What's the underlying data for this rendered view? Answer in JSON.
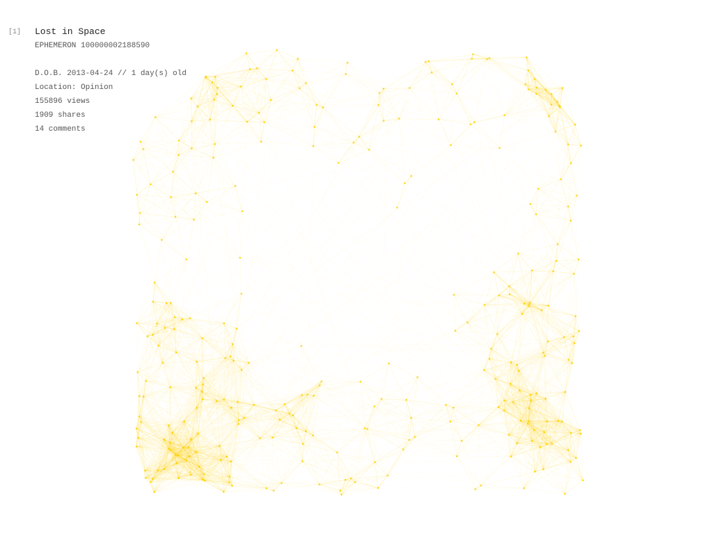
{
  "entry": {
    "index": "[1]",
    "title": "Lost in Space",
    "id_line": "EPHEMERON 100000002188590",
    "dob_line": "D.O.B. 2013-04-24  //  1 day(s) old",
    "location_line": "Location: Opinion",
    "views_line": "155896 views",
    "shares_line": "1909 shares",
    "comments_line": "14 comments"
  },
  "colors": {
    "accent": "#FFD200",
    "edge": "#FFD200",
    "background": "#ffffff",
    "text": "#555555",
    "title": "#222222"
  }
}
